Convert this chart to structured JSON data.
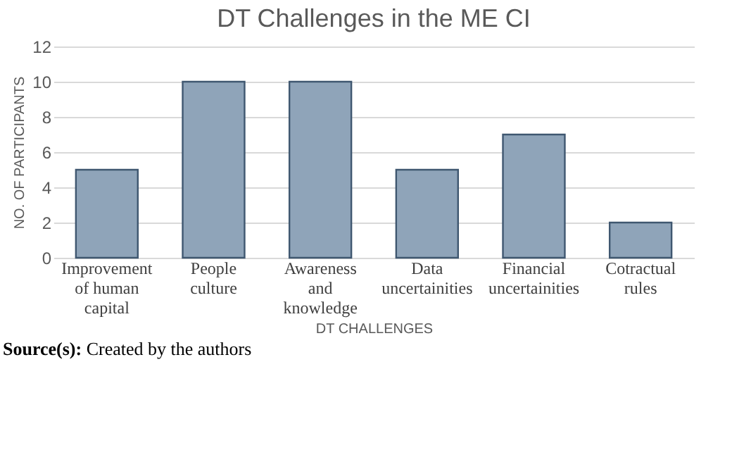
{
  "chart_data": {
    "type": "bar",
    "title": "DT Challenges in the ME CI",
    "xlabel": "DT CHALLENGES",
    "ylabel": "NO. OF PARTICIPANTS",
    "categories": [
      "Improvement of human capital",
      "People culture",
      "Awareness and knowledge",
      "Data uncertainities",
      "Financial uncertainities",
      "Cotractual rules"
    ],
    "values": [
      5,
      10,
      10,
      5,
      7,
      2
    ],
    "color": "#8fa4b9",
    "ylim": [
      0,
      12
    ],
    "yticks": [
      0,
      2,
      4,
      6,
      8,
      10,
      12
    ],
    "grid": "y",
    "legend": false,
    "annotations": [
      "Source(s): Created by the authors"
    ]
  }
}
